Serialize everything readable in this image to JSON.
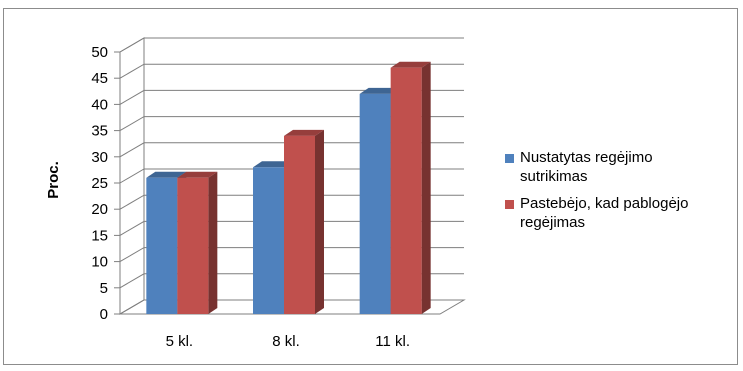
{
  "chart_data": {
    "type": "bar",
    "ylabel": "Proc.",
    "categories": [
      "5 kl.",
      "8 kl.",
      "11 kl."
    ],
    "ylim": [
      0,
      50
    ],
    "yticks": [
      0,
      5,
      10,
      15,
      20,
      25,
      30,
      35,
      40,
      45,
      50
    ],
    "grid": true,
    "legend_position": "right",
    "series": [
      {
        "name": "Nustatytas regėjimo sutrikimas",
        "values": [
          26,
          28,
          42
        ],
        "color": "#4f81bd"
      },
      {
        "name": "Pastebėjo, kad pablogėjo regėjimas",
        "values": [
          26,
          34,
          47
        ],
        "color": "#c0504d"
      }
    ]
  }
}
